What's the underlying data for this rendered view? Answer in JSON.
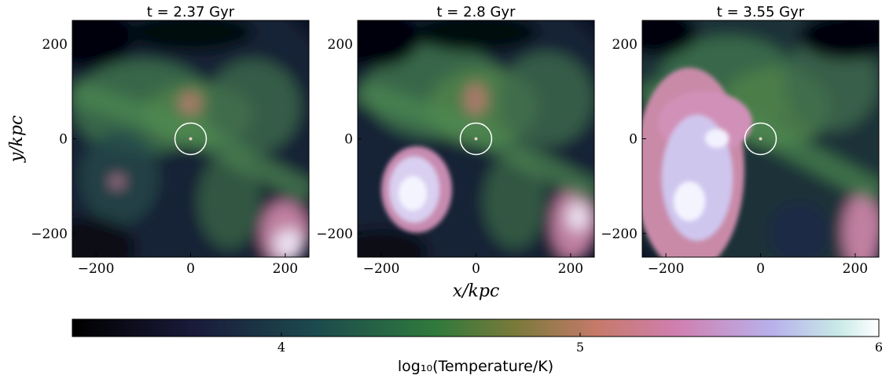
{
  "chart_data": [
    {
      "type": "image",
      "title": "t = 2.37 Gyr",
      "ylabel": "y/kpc",
      "xlim": [
        -250,
        250
      ],
      "ylim": [
        -250,
        250
      ],
      "xticks": [
        {
          "value": -200,
          "label": "−200"
        },
        0,
        200
      ],
      "yticks": [
        {
          "value": -200,
          "label": "−200"
        },
        0,
        200
      ]
    },
    {
      "type": "image",
      "title": "t = 2.8 Gyr",
      "xlabel": "x/kpc",
      "xlim": [
        -250,
        250
      ],
      "ylim": [
        -250,
        250
      ],
      "xticks": [
        {
          "value": -200,
          "label": "−200"
        },
        0,
        200
      ],
      "yticks": [
        {
          "value": -200,
          "label": "−200"
        },
        0,
        200
      ]
    },
    {
      "type": "image",
      "title": "t = 3.55 Gyr",
      "xlim": [
        -250,
        250
      ],
      "ylim": [
        -250,
        250
      ],
      "xticks": [
        {
          "value": -200,
          "label": "−200"
        },
        0,
        200
      ],
      "yticks": [
        {
          "value": -200,
          "label": "−200"
        },
        0,
        200
      ]
    },
    {
      "type": "colorbar",
      "label": "log₁₀(Temperature/K)",
      "xlim": [
        3.3,
        6
      ],
      "xticks": [
        4,
        5,
        6
      ]
    }
  ]
}
